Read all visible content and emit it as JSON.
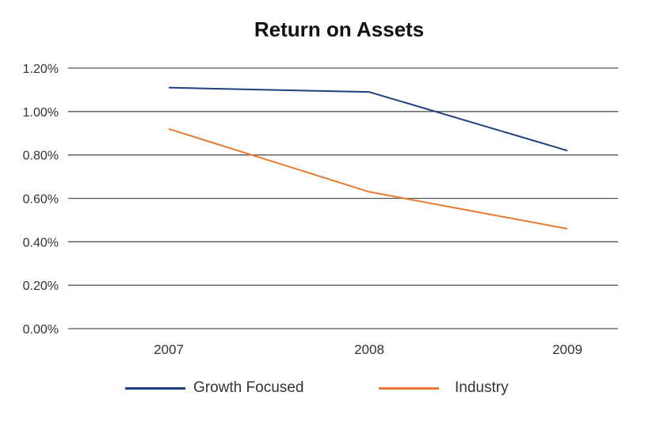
{
  "chart_data": {
    "type": "line",
    "title": "Return on Assets",
    "categories": [
      "2007",
      "2008",
      "2009"
    ],
    "y_ticks": [
      "0.00%",
      "0.20%",
      "0.40%",
      "0.60%",
      "0.80%",
      "1.00%",
      "1.20%"
    ],
    "ylim": [
      0,
      1.2
    ],
    "grid": true,
    "legend_position": "bottom",
    "series": [
      {
        "name": "Growth Focused",
        "color": "#1f3f7f",
        "values": [
          1.11,
          1.09,
          0.82
        ]
      },
      {
        "name": "Industry",
        "color": "#e8792f",
        "values": [
          0.92,
          0.63,
          0.46
        ]
      }
    ]
  }
}
